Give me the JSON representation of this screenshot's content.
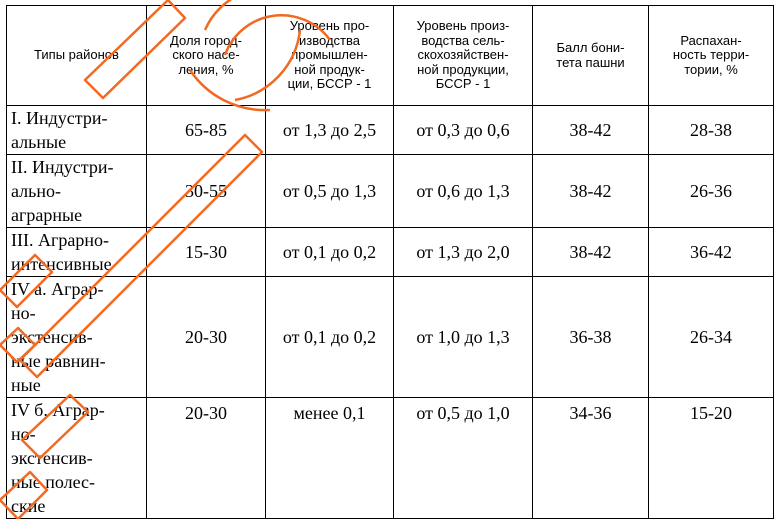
{
  "table": {
    "headers": [
      "Типы районов",
      "Доля город-\nского насе-\nления, %",
      "Уровень про-\nизводства\nпромышлен-\nной продук-\nции, БССР - 1",
      "Уровень произ-\nводства сель-\nскохозяйствен-\nной продукции,\nБССР - 1",
      "Балл бони-\nтета пашни",
      "Распахан-\nность терри-\nтории, %"
    ],
    "rows": [
      {
        "type": "I. Индустри-\nальные",
        "urban": "65-85",
        "industry": "от 1,3 до 2,5",
        "agri": "от 0,3 до 0,6",
        "soil": "38-42",
        "plowed": "28-38"
      },
      {
        "type": "II. Индустри-\nально-\nаграрные",
        "urban": "30-55",
        "industry": "от 0,5 до 1,3",
        "agri": "от 0,6 до 1,3",
        "soil": "38-42",
        "plowed": "26-36"
      },
      {
        "type": "III. Аграрно-\nинтенсивные",
        "urban": "15-30",
        "industry": "от 0,1 до 0,2",
        "agri": "от 1,3 до 2,0",
        "soil": "38-42",
        "plowed": "36-42"
      },
      {
        "type": "IV а. Аграр-\nно-\nэкстенсив-\nные равнин-\nные",
        "urban": "20-30",
        "industry": "от 0,1 до 0,2",
        "agri": "от 1,0 до 1,3",
        "soil": "36-38",
        "plowed": "26-34"
      },
      {
        "type": "IV б. Аграр-\nно-\nэкстенсив-\nные полес-\nские",
        "urban": "20-30",
        "industry": "менее 0,1",
        "agri": "от 0,5 до 1,0",
        "soil": "34-36",
        "plowed": "15-20"
      }
    ]
  },
  "watermark": {
    "color": "#f26a21"
  }
}
